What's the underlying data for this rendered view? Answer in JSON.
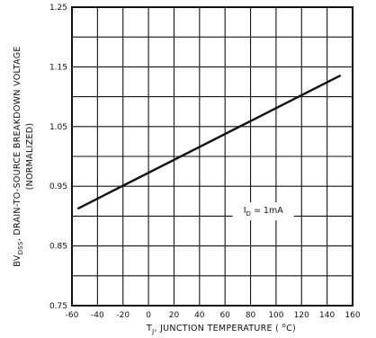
{
  "chart_data": {
    "type": "line",
    "title": "",
    "xlabel_parts": {
      "t": "T",
      "sub": "J",
      "rest": ", JUNCTION TEMPERATURE ( ",
      "unit_sup": "o",
      "unit": "C)"
    },
    "ylabel_parts": {
      "bv": "BV",
      "sub": "DSS",
      "rest": ", DRAIN-TO-SOURCE BREAKDOWN VOLTAGE",
      "line2": "(NORMALIZED)"
    },
    "xlim": [
      -60,
      160
    ],
    "ylim": [
      0.75,
      1.25
    ],
    "x_ticks": [
      "-60",
      "-40",
      "-20",
      "0",
      "20",
      "40",
      "60",
      "80",
      "100",
      "120",
      "140",
      "160"
    ],
    "y_ticks": [
      "0.75",
      "0.85",
      "0.95",
      "1.05",
      "1.15",
      "1.25"
    ],
    "grid": true,
    "series": [
      {
        "x": [
          -55,
          150
        ],
        "y": [
          0.913,
          1.135
        ]
      }
    ],
    "annotation": {
      "i": "I",
      "sub": "D",
      "rest": " = 1mA"
    },
    "colors": {
      "line": "#111111",
      "grid": "#111111",
      "background": "#ffffff"
    }
  }
}
